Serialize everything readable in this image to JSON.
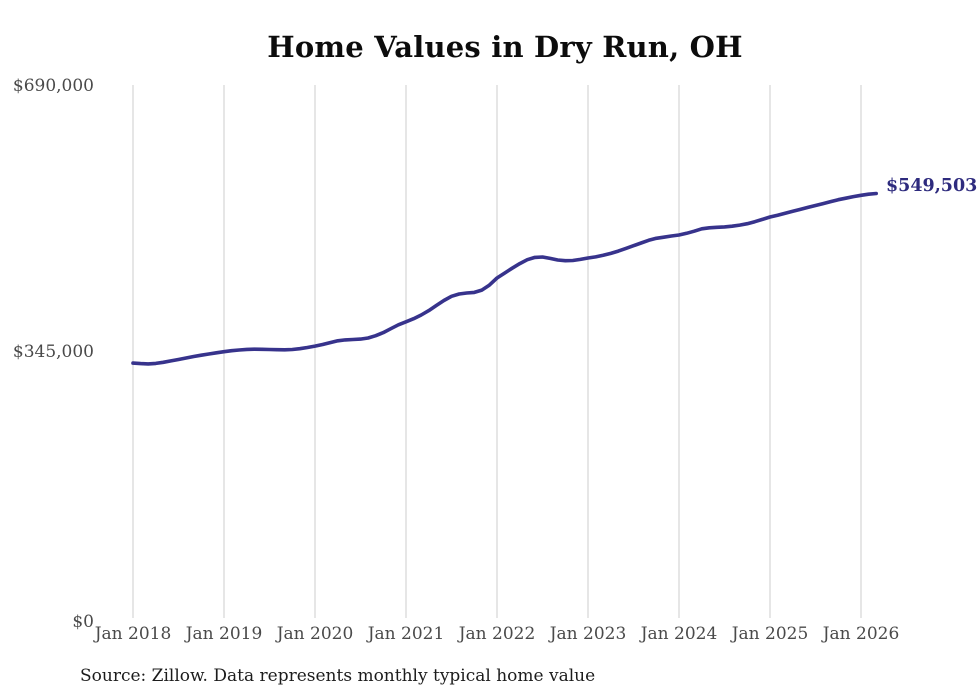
{
  "chart_data": {
    "type": "line",
    "title": "Home Values in Dry Run, OH",
    "source_note": "Source: Zillow. Data represents monthly typical home value",
    "end_label": "$549,503",
    "final_value": 549503,
    "x_interval": "monthly",
    "x_start_month": "2018-01",
    "x_end_month": "2026-03",
    "x_tick_labels": [
      "Jan 2018",
      "Jan 2019",
      "Jan 2020",
      "Jan 2021",
      "Jan 2022",
      "Jan 2023",
      "Jan 2024",
      "Jan 2025",
      "Jan 2026"
    ],
    "y_tick_labels": [
      "$690,000",
      "$345,000",
      "$0"
    ],
    "y_ticks": [
      690000,
      345000,
      0
    ],
    "ylim": [
      0,
      690000
    ],
    "grid": "vertical-only",
    "legend_position": "none",
    "colors": {
      "line": "#37338c",
      "annotation": "#2e2b7e",
      "gridline": "#cccccc",
      "axis_label": "#4a4a4a",
      "title": "#0c0c0c",
      "source": "#1c1c1c",
      "background": "#ffffff"
    },
    "series": [
      {
        "name": "Typical home value",
        "color": "#37338c",
        "values": [
          330000,
          329300,
          329000,
          329600,
          331000,
          332800,
          334700,
          336600,
          338500,
          340200,
          341800,
          343300,
          344800,
          346000,
          347000,
          347700,
          348000,
          347900,
          347600,
          347300,
          347200,
          347600,
          348600,
          350200,
          352000,
          354000,
          356500,
          358800,
          360000,
          360500,
          361000,
          362500,
          365500,
          369500,
          374500,
          379500,
          383500,
          387500,
          392200,
          398000,
          404500,
          411000,
          416500,
          419500,
          420700,
          421500,
          424500,
          431000,
          440200,
          446500,
          452800,
          458800,
          463800,
          466800,
          467300,
          465500,
          463500,
          462500,
          462800,
          464200,
          466100,
          467500,
          469500,
          472000,
          475000,
          478500,
          482000,
          485500,
          489000,
          491500,
          493000,
          494500,
          495800,
          498000,
          500800,
          503800,
          505200,
          505800,
          506300,
          507200,
          508600,
          510500,
          513000,
          516000,
          519100,
          521500,
          524000,
          526500,
          529000,
          531500,
          534000,
          536500,
          539000,
          541500,
          543500,
          545500,
          547200,
          548600,
          549503
        ]
      }
    ]
  }
}
